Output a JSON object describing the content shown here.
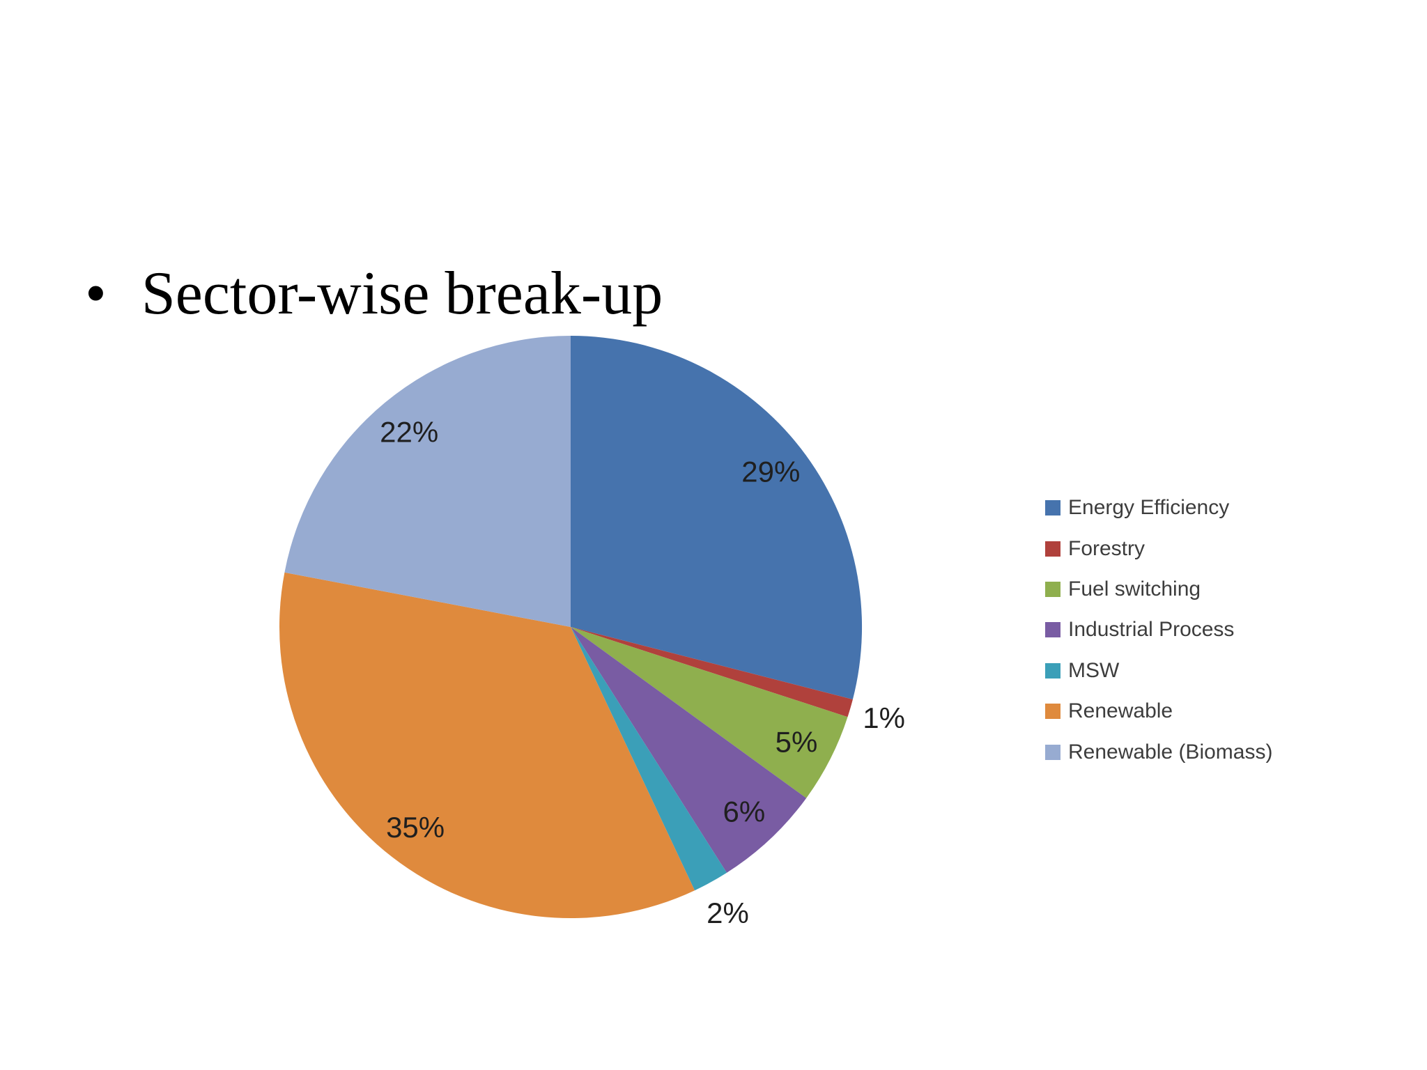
{
  "slide": {
    "title": "Sector-wise break-up",
    "bullet": "•",
    "background_color": "#FFFFFF"
  },
  "chart_data": {
    "type": "pie",
    "title": "",
    "start_angle_deg": 0,
    "direction": "clockwise",
    "data_labels_format": "percent",
    "legend_position": "right",
    "slices": [
      {
        "label": "Energy Efficiency",
        "value": 29,
        "display": "29%",
        "color": "#4673AD",
        "label_position": "inside"
      },
      {
        "label": "Forestry",
        "value": 1,
        "display": "1%",
        "color": "#B0413C",
        "label_position": "outside"
      },
      {
        "label": "Fuel switching",
        "value": 5,
        "display": "5%",
        "color": "#8FAF4E",
        "label_position": "inside"
      },
      {
        "label": "Industrial Process",
        "value": 6,
        "display": "6%",
        "color": "#795CA3",
        "label_position": "inside"
      },
      {
        "label": "MSW",
        "value": 2,
        "display": "2%",
        "color": "#3B9FB8",
        "label_position": "outside"
      },
      {
        "label": "Renewable",
        "value": 35,
        "display": "35%",
        "color": "#DF8A3D",
        "label_position": "inside"
      },
      {
        "label": "Renewable (Biomass)",
        "value": 22,
        "display": "22%",
        "color": "#97ABD1",
        "label_position": "inside"
      }
    ],
    "legend": [
      "Energy Efficiency",
      "Forestry",
      "Fuel switching",
      "Industrial Process",
      "MSW",
      "Renewable",
      "Renewable (Biomass)"
    ]
  }
}
